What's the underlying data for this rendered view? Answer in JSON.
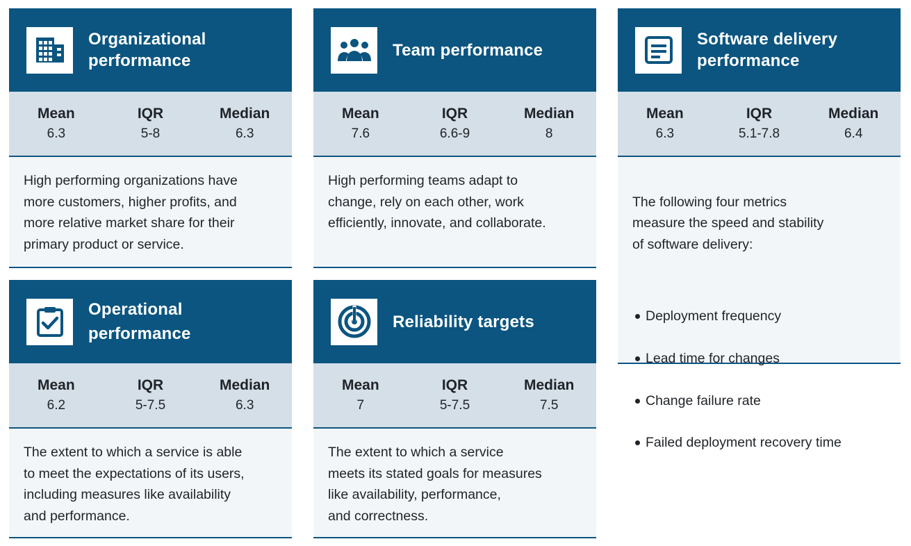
{
  "cards": [
    {
      "icon": "building-icon",
      "title": "Organizational\nperformance",
      "stats": {
        "mean_label": "Mean",
        "mean": "6.3",
        "iqr_label": "IQR",
        "iqr": "5-8",
        "median_label": "Median",
        "median": "6.3"
      },
      "description": "High performing organizations have\nmore customers, higher profits, and\nmore relative market share for their\nprimary product or service."
    },
    {
      "icon": "team-icon",
      "title": "Team performance",
      "stats": {
        "mean_label": "Mean",
        "mean": "7.6",
        "iqr_label": "IQR",
        "iqr": "6.6-9",
        "median_label": "Median",
        "median": "8"
      },
      "description": "High performing teams adapt to\nchange, rely on each other, work\nefficiently, innovate, and collaborate."
    },
    {
      "icon": "software-window-icon",
      "title": "Software delivery\nperformance",
      "stats": {
        "mean_label": "Mean",
        "mean": "6.3",
        "iqr_label": "IQR",
        "iqr": "5.1-7.8",
        "median_label": "Median",
        "median": "6.4"
      },
      "description": "The following four metrics\nmeasure the speed and stability\nof software delivery:",
      "bullets": [
        "Deployment frequency",
        "Lead time for changes",
        "Change failure rate",
        "Failed deployment recovery time"
      ]
    },
    {
      "icon": "clipboard-check-icon",
      "title": "Operational\nperformance",
      "stats": {
        "mean_label": "Mean",
        "mean": "6.2",
        "iqr_label": "IQR",
        "iqr": "5-7.5",
        "median_label": "Median",
        "median": "6.3"
      },
      "description": "The extent to which a service is able\nto meet the expectations of its users,\nincluding measures like availability\nand performance."
    },
    {
      "icon": "target-icon",
      "title": "Reliability targets",
      "stats": {
        "mean_label": "Mean",
        "mean": "7",
        "iqr_label": "IQR",
        "iqr": "5-7.5",
        "median_label": "Median",
        "median": "7.5"
      },
      "description": "The extent to which a service\nmeets its stated goals for measures\nlike availability, performance,\nand correctness."
    }
  ],
  "colors": {
    "header": "#0b5580",
    "stats_bg": "#d5dfe7",
    "desc_bg": "#f3f6f9"
  }
}
